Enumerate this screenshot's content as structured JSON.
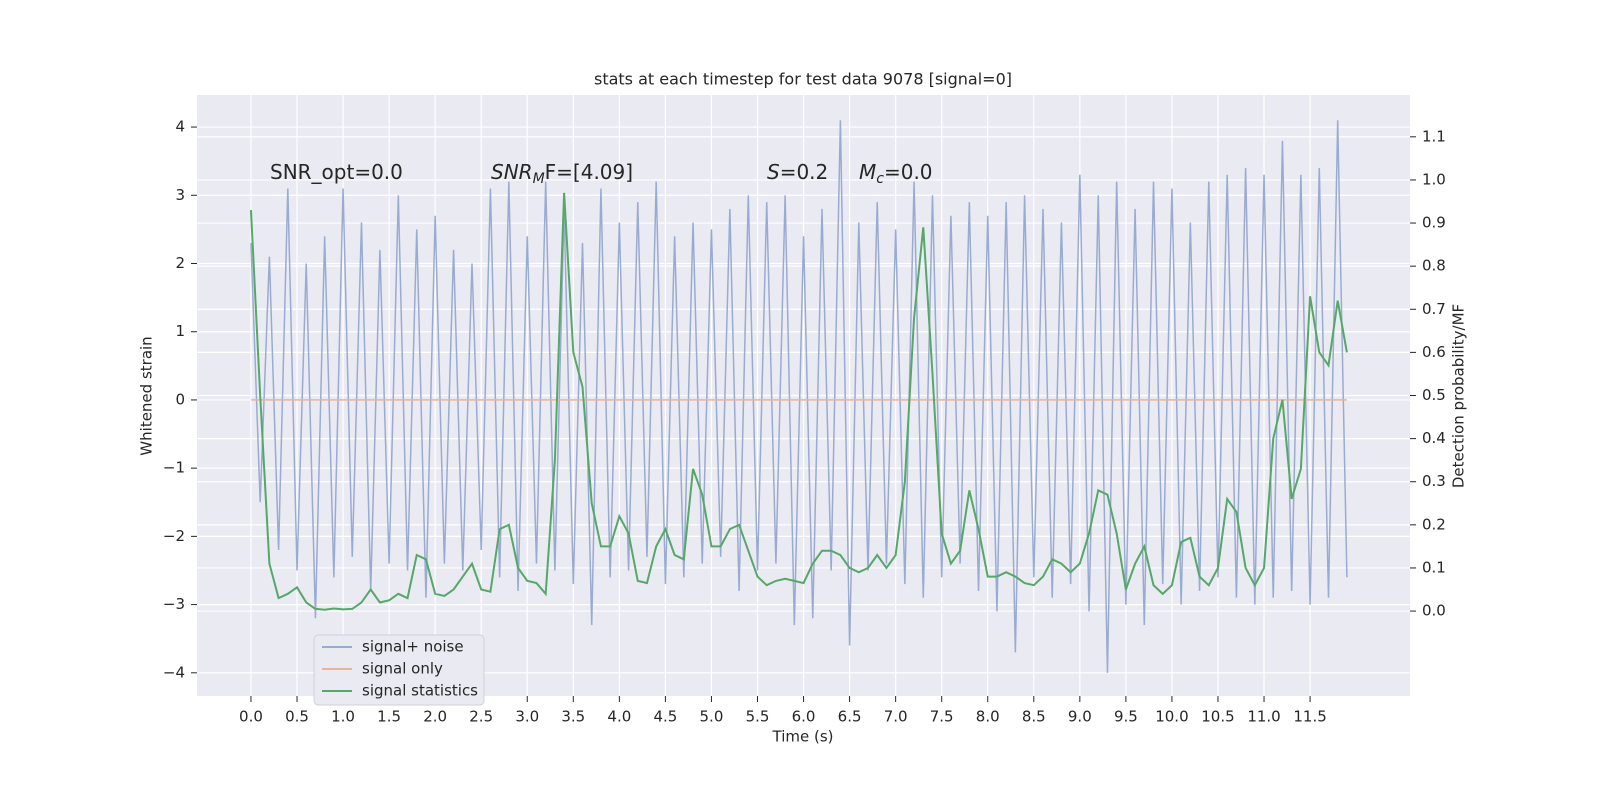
{
  "chart_data": {
    "type": "line",
    "title": "stats at each timestep for test data 9078 [signal=0]",
    "xlabel": "Time (s)",
    "ylabel": "Whitened strain",
    "y2label": "Detection probability/MF",
    "xlim": [
      -0.586,
      12.585
    ],
    "ylim": [
      -4.34,
      4.47
    ],
    "y2lim": [
      -0.197,
      1.197
    ],
    "grid": true,
    "legend": "lower left",
    "xticks": [
      {
        "value": 0,
        "label": "0.0"
      },
      0.5,
      {
        "value": 1,
        "label": "1.0"
      },
      1.5,
      {
        "value": 2,
        "label": "2.0"
      },
      2.5,
      {
        "value": 3,
        "label": "3.0"
      },
      3.5,
      {
        "value": 4,
        "label": "4.0"
      },
      4.5,
      {
        "value": 5,
        "label": "5.0"
      },
      5.5,
      {
        "value": 6,
        "label": "6.0"
      },
      6.5,
      {
        "value": 7,
        "label": "7.0"
      },
      7.5,
      {
        "value": 8,
        "label": "8.0"
      },
      8.5,
      {
        "value": 9,
        "label": "9.0"
      },
      9.5,
      {
        "value": 10,
        "label": "10.0"
      },
      10.5,
      {
        "value": 11,
        "label": "11.0"
      },
      11.5
    ],
    "yticks": [
      {
        "value": -4,
        "label": "−4"
      },
      {
        "value": -3,
        "label": "−3"
      },
      {
        "value": -2,
        "label": "−2"
      },
      {
        "value": -1,
        "label": "−1"
      },
      0,
      1,
      2,
      3,
      4
    ],
    "y2ticks": [
      {
        "value": 0,
        "label": "0.0"
      },
      0.1,
      0.2,
      0.3,
      0.4,
      0.5,
      0.6,
      0.7,
      0.8,
      0.9,
      {
        "value": 1,
        "label": "1.0"
      },
      1.1
    ],
    "x": [
      0,
      0.1,
      0.2,
      0.3,
      0.4,
      0.5,
      0.6,
      0.7,
      0.8,
      0.9,
      1,
      1.1,
      1.2,
      1.3,
      1.4,
      1.5,
      1.6,
      1.7,
      1.8,
      1.9,
      2,
      2.1,
      2.2,
      2.3,
      2.4,
      2.5,
      2.6,
      2.7,
      2.8,
      2.9,
      3,
      3.1,
      3.2,
      3.3,
      3.4,
      3.5,
      3.6,
      3.7,
      3.8,
      3.9,
      4,
      4.1,
      4.2,
      4.3,
      4.4,
      4.5,
      4.6,
      4.7,
      4.8,
      4.9,
      5,
      5.1,
      5.2,
      5.3,
      5.4,
      5.5,
      5.6,
      5.7,
      5.8,
      5.9,
      6,
      6.1,
      6.2,
      6.3,
      6.4,
      6.5,
      6.6,
      6.7,
      6.8,
      6.9,
      7,
      7.1,
      7.2,
      7.3,
      7.4,
      7.5,
      7.6,
      7.7,
      7.8,
      7.9,
      8,
      8.1,
      8.2,
      8.3,
      8.4,
      8.5,
      8.6,
      8.7,
      8.8,
      8.9,
      9,
      9.1,
      9.2,
      9.3,
      9.4,
      9.5,
      9.6,
      9.7,
      9.8,
      9.9,
      10,
      10.1,
      10.2,
      10.3,
      10.4,
      10.5,
      10.6,
      10.7,
      10.8,
      10.9,
      11,
      11.1,
      11.2,
      11.3,
      11.4,
      11.5,
      11.6,
      11.7,
      11.8,
      11.9
    ],
    "series": [
      {
        "name": "signal+ noise",
        "color": "#9aabd2",
        "values": [
          2.3,
          -1.5,
          2.1,
          -2.2,
          3.1,
          -2.5,
          2.0,
          -3.2,
          2.4,
          -2.6,
          3.1,
          -2.3,
          2.6,
          -2.8,
          2.2,
          -2.4,
          3.0,
          -2.5,
          2.5,
          -2.9,
          2.7,
          -2.4,
          2.2,
          -2.5,
          2.0,
          -2.2,
          3.1,
          -2.6,
          3.2,
          -2.8,
          2.4,
          -2.4,
          3.2,
          -2.5,
          2.8,
          -2.7,
          2.3,
          -3.3,
          3.1,
          -2.6,
          2.6,
          -2.5,
          2.9,
          -2.3,
          3.2,
          -2.7,
          2.4,
          -2.6,
          2.6,
          -2.4,
          2.5,
          -2.3,
          2.8,
          -2.8,
          3.0,
          -2.5,
          2.9,
          -2.4,
          3.0,
          -3.3,
          2.4,
          -3.2,
          2.8,
          -2.5,
          4.1,
          -3.6,
          2.6,
          -2.5,
          2.9,
          -2.4,
          2.5,
          -2.7,
          3.2,
          -2.9,
          3.0,
          -2.6,
          2.7,
          -2.4,
          2.9,
          -2.8,
          2.7,
          -3.1,
          2.9,
          -3.7,
          3.0,
          -2.6,
          2.8,
          -2.9,
          2.6,
          -2.7,
          3.3,
          -3.1,
          3.0,
          -4.0,
          3.2,
          -3.0,
          2.8,
          -3.3,
          3.2,
          -2.7,
          3.1,
          -3.0,
          2.6,
          -2.8,
          3.2,
          -2.6,
          3.3,
          -2.9,
          3.4,
          -3.0,
          3.3,
          -2.9,
          3.8,
          -2.8,
          3.3,
          -3.0,
          3.4,
          -2.9,
          4.1,
          -2.6
        ]
      },
      {
        "name": "signal only",
        "color": "#e8b49a",
        "x": [
          0,
          11.9
        ],
        "values": [
          0,
          0
        ]
      },
      {
        "name": "signal statistics",
        "color": "#55a868",
        "axis": "y2",
        "values": [
          0.93,
          0.5,
          0.11,
          0.03,
          0.04,
          0.055,
          0.02,
          0.005,
          0.003,
          0.006,
          0.004,
          0.005,
          0.02,
          0.05,
          0.02,
          0.025,
          0.04,
          0.03,
          0.13,
          0.12,
          0.04,
          0.035,
          0.05,
          0.08,
          0.11,
          0.05,
          0.045,
          0.19,
          0.2,
          0.1,
          0.07,
          0.065,
          0.04,
          0.35,
          0.97,
          0.6,
          0.52,
          0.25,
          0.15,
          0.15,
          0.22,
          0.18,
          0.07,
          0.065,
          0.15,
          0.19,
          0.13,
          0.12,
          0.33,
          0.27,
          0.15,
          0.15,
          0.19,
          0.2,
          0.14,
          0.08,
          0.06,
          0.07,
          0.075,
          0.07,
          0.065,
          0.11,
          0.14,
          0.14,
          0.13,
          0.1,
          0.09,
          0.1,
          0.13,
          0.1,
          0.13,
          0.3,
          0.68,
          0.89,
          0.55,
          0.18,
          0.11,
          0.14,
          0.28,
          0.19,
          0.08,
          0.08,
          0.09,
          0.08,
          0.065,
          0.06,
          0.08,
          0.12,
          0.11,
          0.09,
          0.11,
          0.18,
          0.28,
          0.27,
          0.18,
          0.05,
          0.11,
          0.15,
          0.06,
          0.04,
          0.06,
          0.16,
          0.17,
          0.08,
          0.06,
          0.1,
          0.26,
          0.23,
          0.1,
          0.06,
          0.1,
          0.4,
          0.49,
          0.26,
          0.33,
          0.73,
          0.6,
          0.57,
          0.72,
          0.6
        ]
      }
    ],
    "annotations": [
      [
        {
          "text": "SNR_opt=0.0"
        }
      ],
      [
        {
          "text": "SNR",
          "italic": true
        },
        {
          "text": "M",
          "italic": true,
          "sub": true
        },
        {
          "text": "F=[4.09]"
        }
      ],
      [
        {
          "text": "S",
          "italic": true
        },
        {
          "text": "=0.2"
        }
      ],
      [
        {
          "text": "M",
          "italic": true
        },
        {
          "text": "c",
          "italic": true,
          "sub": true
        },
        {
          "text": "=0.0"
        }
      ]
    ]
  }
}
